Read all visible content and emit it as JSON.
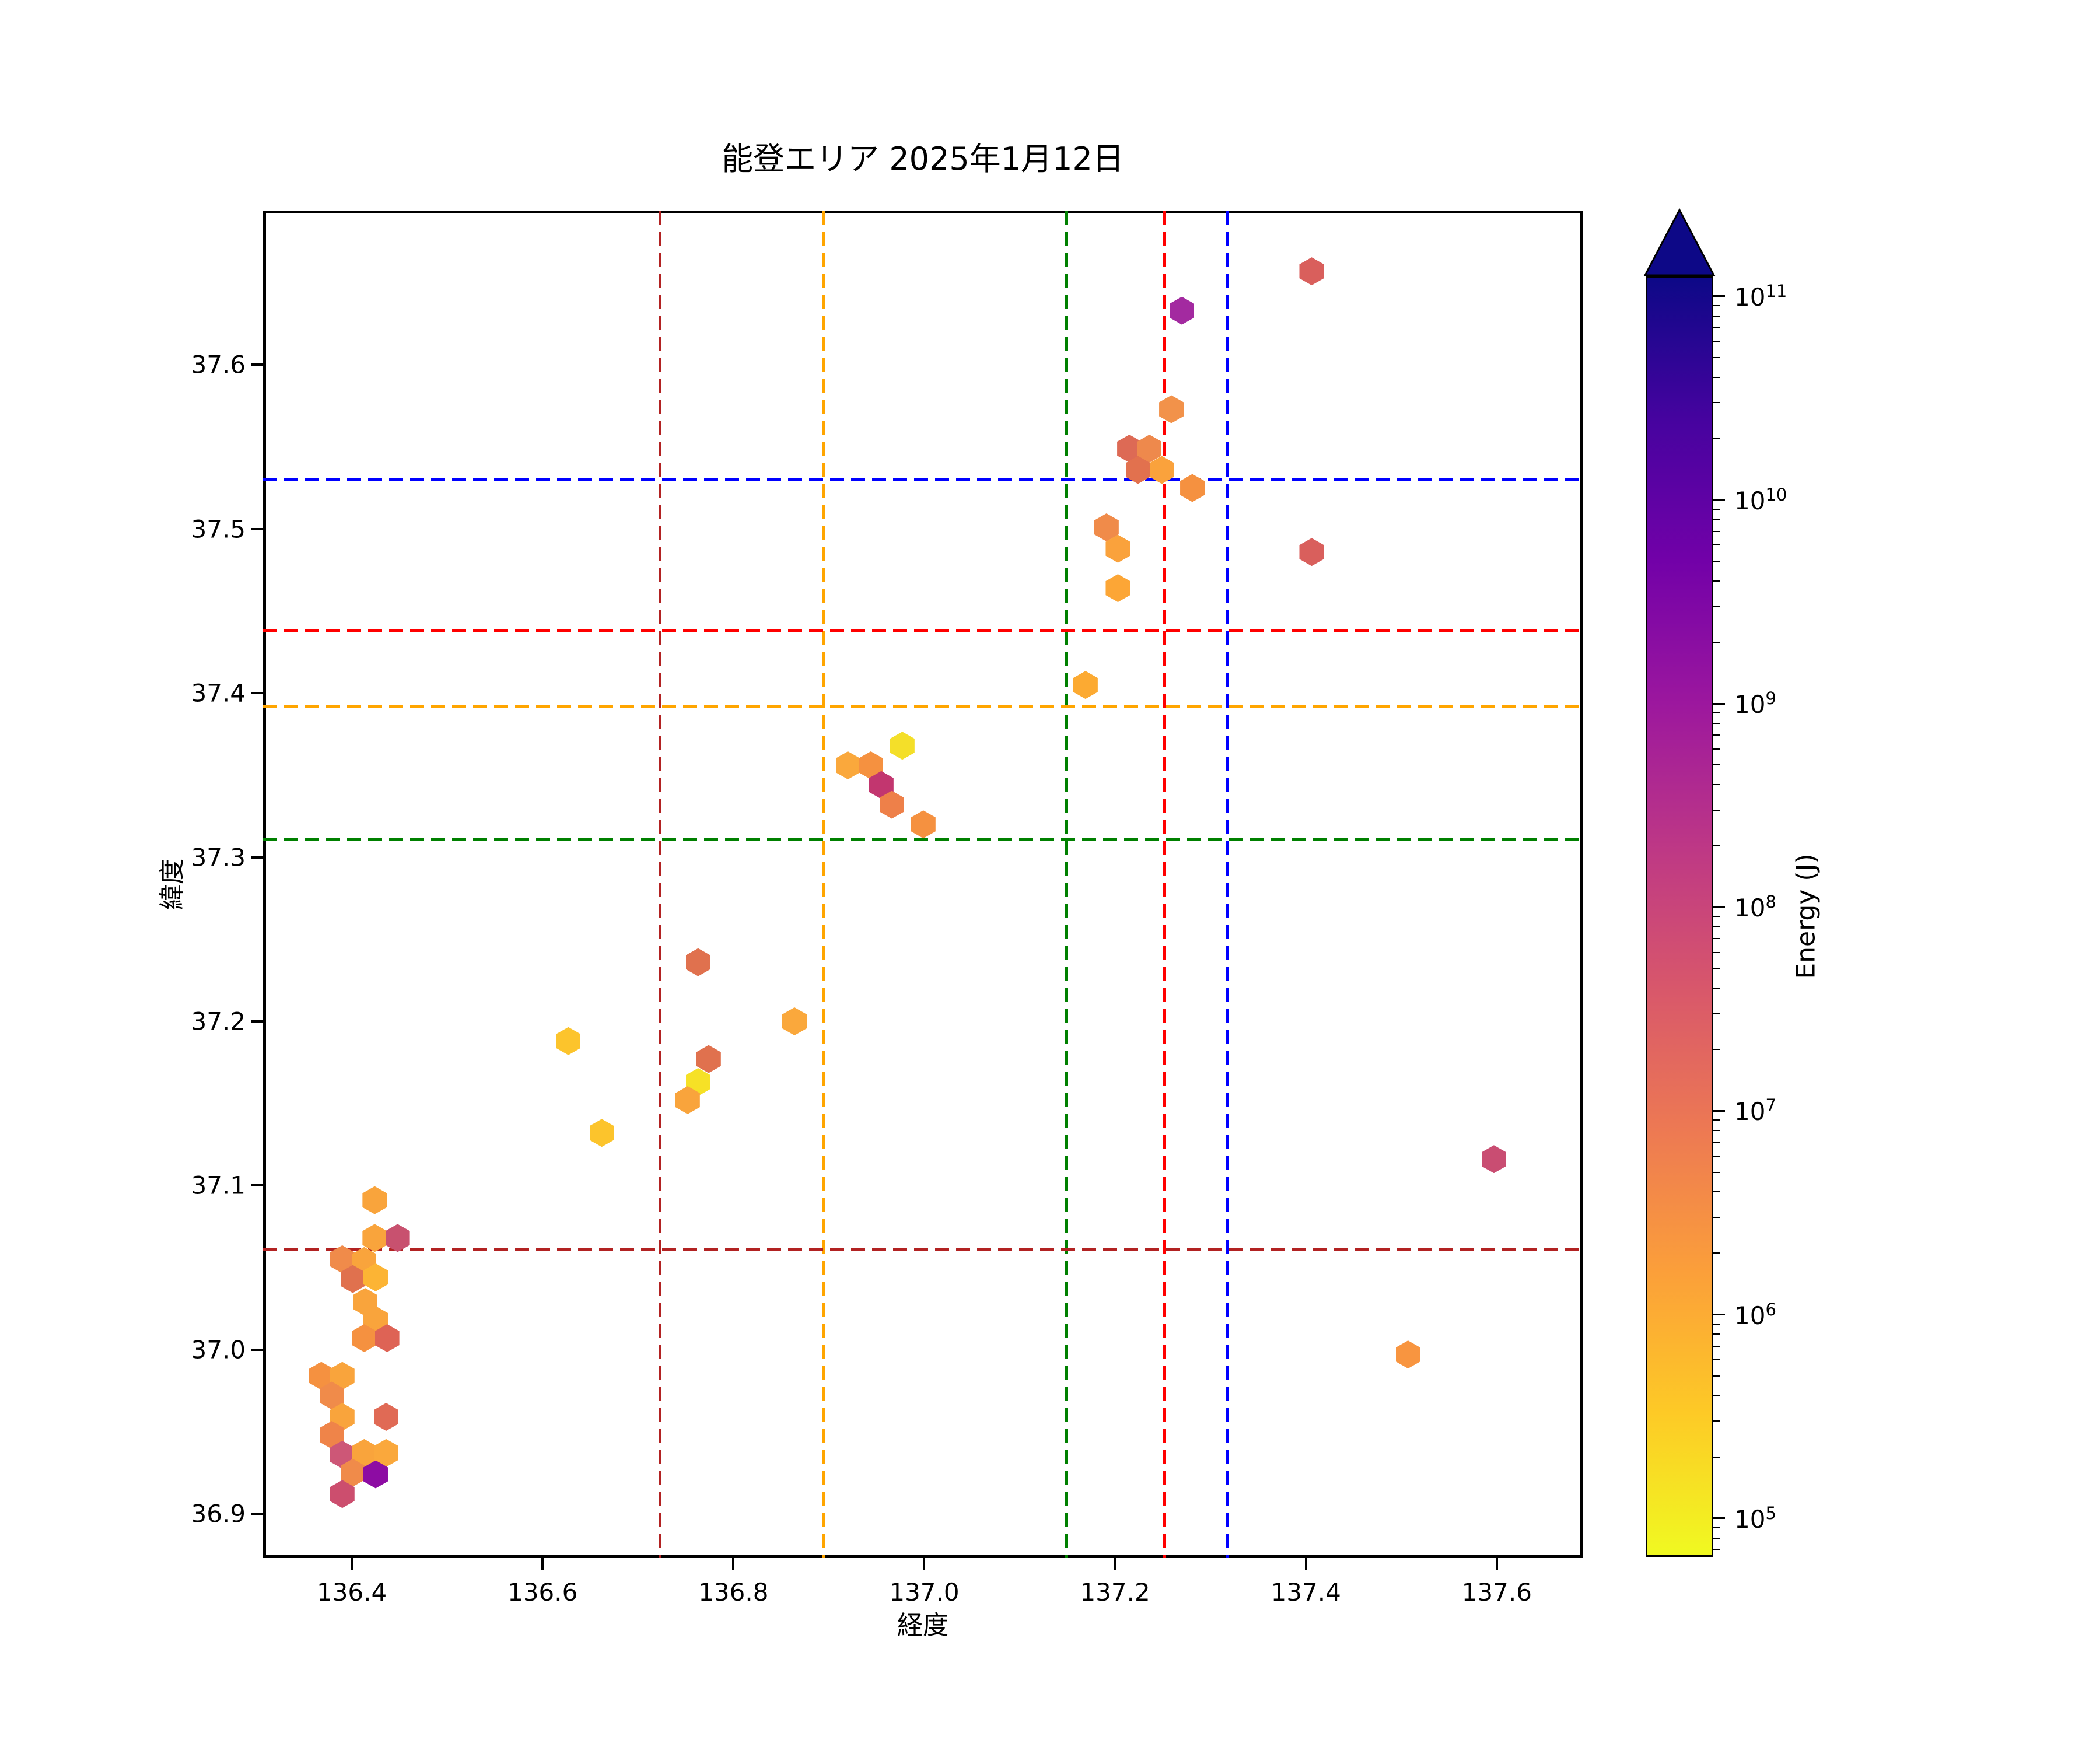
{
  "title": "能登エリア 2025年1月12日",
  "axes": {
    "xlabel": "経度",
    "ylabel": "緯度",
    "xlim": [
      136.307,
      137.69
    ],
    "ylim": [
      36.873,
      37.694
    ],
    "xticks": [
      {
        "value": 136.4,
        "label": "136.4"
      },
      {
        "value": 136.6,
        "label": "136.6"
      },
      {
        "value": 136.8,
        "label": "136.8"
      },
      {
        "value": 137.0,
        "label": "137.0"
      },
      {
        "value": 137.2,
        "label": "137.2"
      },
      {
        "value": 137.4,
        "label": "137.4"
      },
      {
        "value": 137.6,
        "label": "137.6"
      }
    ],
    "yticks": [
      {
        "value": 36.9,
        "label": "36.9"
      },
      {
        "value": 37.0,
        "label": "37.0"
      },
      {
        "value": 37.1,
        "label": "37.1"
      },
      {
        "value": 37.2,
        "label": "37.2"
      },
      {
        "value": 37.3,
        "label": "37.3"
      },
      {
        "value": 37.4,
        "label": "37.4"
      },
      {
        "value": 37.5,
        "label": "37.5"
      },
      {
        "value": 37.6,
        "label": "37.6"
      }
    ]
  },
  "colorbar": {
    "label": "Energy (J)",
    "tick_exponents": [
      5,
      6,
      7,
      8,
      9,
      10,
      11
    ],
    "log_min": 4.81,
    "log_max": 11.1,
    "colormap": "plasma_r",
    "gradient_stops_bottom_to_top": [
      "#f0f921",
      "#fdca26",
      "#fb9f3a",
      "#ed7953",
      "#d8576b",
      "#bd3786",
      "#9c179e",
      "#7201a8",
      "#46039f",
      "#0d0887"
    ],
    "over_color": "#0d0887"
  },
  "reference_lines": {
    "vertical": [
      {
        "lon": 136.723,
        "color": "#b22222",
        "name": "darkred-vline"
      },
      {
        "lon": 136.894,
        "color": "#ffa500",
        "name": "orange-vline"
      },
      {
        "lon": 137.149,
        "color": "#008000",
        "name": "green-vline"
      },
      {
        "lon": 137.252,
        "color": "#ff0000",
        "name": "red-vline"
      },
      {
        "lon": 137.318,
        "color": "#0000ff",
        "name": "blue-vline"
      }
    ],
    "horizontal": [
      {
        "lat": 37.53,
        "color": "#0000ff",
        "name": "blue-hline"
      },
      {
        "lat": 37.438,
        "color": "#ff0000",
        "name": "red-hline"
      },
      {
        "lat": 37.392,
        "color": "#ffa500",
        "name": "orange-hline"
      },
      {
        "lat": 37.311,
        "color": "#008000",
        "name": "green-hline"
      },
      {
        "lat": 37.061,
        "color": "#b22222",
        "name": "darkred-hline"
      }
    ]
  },
  "chart_data": {
    "type": "scatter",
    "marker": "hexagon",
    "xlabel": "経度",
    "ylabel": "緯度",
    "color_variable": "Energy (J)",
    "color_scale": "log",
    "points": [
      {
        "lon": 136.424,
        "lat": 37.091,
        "color": "#f9a43c",
        "energy_j": 1300000.0
      },
      {
        "lon": 136.424,
        "lat": 37.068,
        "color": "#f9a43c",
        "energy_j": 1300000.0
      },
      {
        "lon": 136.448,
        "lat": 37.068,
        "color": "#c8516f",
        "energy_j": 160000000.0
      },
      {
        "lon": 136.39,
        "lat": 37.055,
        "color": "#f08b4a",
        "energy_j": 3200000.0
      },
      {
        "lon": 136.413,
        "lat": 37.054,
        "color": "#f9a43c",
        "energy_j": 1300000.0
      },
      {
        "lon": 136.401,
        "lat": 37.043,
        "color": "#e0714e",
        "energy_j": 9500000.0
      },
      {
        "lon": 136.425,
        "lat": 37.044,
        "color": "#fcb434",
        "energy_j": 600000.0
      },
      {
        "lon": 136.414,
        "lat": 37.029,
        "color": "#f9a43c",
        "energy_j": 1300000.0
      },
      {
        "lon": 136.425,
        "lat": 37.018,
        "color": "#f9a43c",
        "energy_j": 1300000.0
      },
      {
        "lon": 136.413,
        "lat": 37.007,
        "color": "#f59140",
        "energy_j": 2200000.0
      },
      {
        "lon": 136.437,
        "lat": 37.007,
        "color": "#de6355",
        "energy_j": 17000000.0
      },
      {
        "lon": 136.368,
        "lat": 36.984,
        "color": "#f59140",
        "energy_j": 2200000.0
      },
      {
        "lon": 136.39,
        "lat": 36.984,
        "color": "#f9a43c",
        "energy_j": 1300000.0
      },
      {
        "lon": 136.379,
        "lat": 36.972,
        "color": "#f08b4a",
        "energy_j": 3200000.0
      },
      {
        "lon": 136.39,
        "lat": 36.959,
        "color": "#f9a43c",
        "energy_j": 1300000.0
      },
      {
        "lon": 136.436,
        "lat": 36.959,
        "color": "#e06a55",
        "energy_j": 14000000.0
      },
      {
        "lon": 136.379,
        "lat": 36.948,
        "color": "#ef8449",
        "energy_j": 4000000.0
      },
      {
        "lon": 136.39,
        "lat": 36.936,
        "color": "#cd5777",
        "energy_j": 120000000.0
      },
      {
        "lon": 136.413,
        "lat": 36.937,
        "color": "#f9a43c",
        "energy_j": 1300000.0
      },
      {
        "lon": 136.436,
        "lat": 36.937,
        "color": "#faa83c",
        "energy_j": 1100000.0
      },
      {
        "lon": 136.401,
        "lat": 36.925,
        "color": "#f08b4a",
        "energy_j": 3200000.0
      },
      {
        "lon": 136.425,
        "lat": 36.924,
        "color": "#8d0ca3",
        "energy_j": 3100000000.0
      },
      {
        "lon": 136.39,
        "lat": 36.912,
        "color": "#cc4e6e",
        "energy_j": 190000000.0
      },
      {
        "lon": 136.763,
        "lat": 37.236,
        "color": "#e0714e",
        "energy_j": 9500000.0
      },
      {
        "lon": 136.864,
        "lat": 37.2,
        "color": "#faa83c",
        "energy_j": 1100000.0
      },
      {
        "lon": 136.627,
        "lat": 37.188,
        "color": "#fcc42c",
        "energy_j": 400000.0
      },
      {
        "lon": 136.774,
        "lat": 37.177,
        "color": "#e0714e",
        "energy_j": 9500000.0
      },
      {
        "lon": 136.763,
        "lat": 37.163,
        "color": "#f6e126",
        "energy_j": 110000.0
      },
      {
        "lon": 136.752,
        "lat": 37.152,
        "color": "#f9a43c",
        "energy_j": 1300000.0
      },
      {
        "lon": 136.662,
        "lat": 37.132,
        "color": "#fcc42c",
        "energy_j": 400000.0
      },
      {
        "lon": 136.977,
        "lat": 37.368,
        "color": "#f4df29",
        "energy_j": 120000.0
      },
      {
        "lon": 136.92,
        "lat": 37.356,
        "color": "#faa83c",
        "energy_j": 1100000.0
      },
      {
        "lon": 136.944,
        "lat": 37.356,
        "color": "#f59140",
        "energy_j": 2200000.0
      },
      {
        "lon": 136.955,
        "lat": 37.344,
        "color": "#c2366f",
        "energy_j": 290000000.0
      },
      {
        "lon": 136.966,
        "lat": 37.332,
        "color": "#ee8049",
        "energy_j": 4300000.0
      },
      {
        "lon": 136.999,
        "lat": 37.32,
        "color": "#f59140",
        "energy_j": 2200000.0
      },
      {
        "lon": 137.27,
        "lat": 37.633,
        "color": "#a32aa0",
        "energy_j": 1600000000.0
      },
      {
        "lon": 137.259,
        "lat": 37.573,
        "color": "#f2924a",
        "energy_j": 2400000.0
      },
      {
        "lon": 137.215,
        "lat": 37.549,
        "color": "#dd6a55",
        "energy_j": 14000000.0
      },
      {
        "lon": 137.236,
        "lat": 37.549,
        "color": "#ee894c",
        "energy_j": 3700000.0
      },
      {
        "lon": 137.224,
        "lat": 37.536,
        "color": "#e2714e",
        "energy_j": 8900000.0
      },
      {
        "lon": 137.249,
        "lat": 37.536,
        "color": "#faa23c",
        "energy_j": 1300000.0
      },
      {
        "lon": 137.281,
        "lat": 37.525,
        "color": "#f59140",
        "energy_j": 2200000.0
      },
      {
        "lon": 137.191,
        "lat": 37.501,
        "color": "#f08b4a",
        "energy_j": 3200000.0
      },
      {
        "lon": 137.203,
        "lat": 37.488,
        "color": "#faa23c",
        "energy_j": 1300000.0
      },
      {
        "lon": 137.203,
        "lat": 37.464,
        "color": "#fca636",
        "energy_j": 900000.0
      },
      {
        "lon": 137.169,
        "lat": 37.405,
        "color": "#fcaa32",
        "energy_j": 870000.0
      },
      {
        "lon": 137.406,
        "lat": 37.657,
        "color": "#d95f5c",
        "energy_j": 25000000.0
      },
      {
        "lon": 137.406,
        "lat": 37.486,
        "color": "#d95f5c",
        "energy_j": 25000000.0
      },
      {
        "lon": 137.597,
        "lat": 37.116,
        "color": "#c94d72",
        "energy_j": 170000000.0
      },
      {
        "lon": 137.507,
        "lat": 36.997,
        "color": "#f89540",
        "energy_j": 1900000.0
      }
    ]
  }
}
